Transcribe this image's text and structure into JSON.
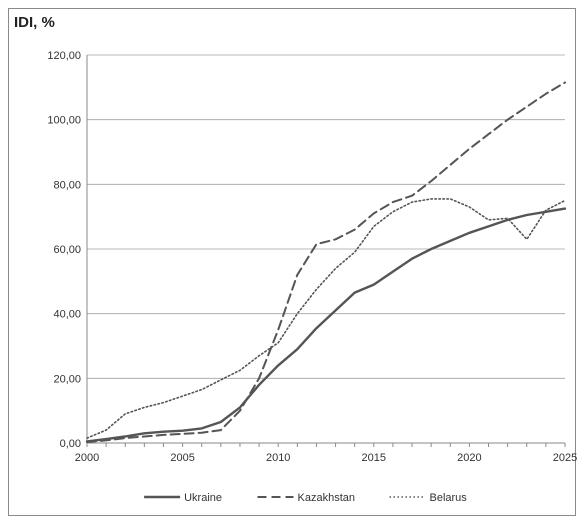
{
  "chart_data": {
    "type": "line",
    "title": "IDI, %",
    "xlabel": "",
    "ylabel": "IDI, %",
    "xlim": [
      2000,
      2025
    ],
    "ylim": [
      0,
      120
    ],
    "x_ticks": [
      "2000",
      "2005",
      "2010",
      "2015",
      "2020",
      "2025"
    ],
    "y_ticks": [
      "0,00",
      "20,00",
      "40,00",
      "60,00",
      "80,00",
      "100,00",
      "120,00"
    ],
    "grid": "horizontal",
    "legend_position": "bottom",
    "x": [
      2000,
      2001,
      2002,
      2003,
      2004,
      2005,
      2006,
      2007,
      2008,
      2009,
      2010,
      2011,
      2012,
      2013,
      2014,
      2015,
      2016,
      2017,
      2018,
      2019,
      2020,
      2021,
      2022,
      2023,
      2024,
      2025
    ],
    "series": [
      {
        "name": "Ukraine",
        "style": "solid",
        "color": "#555555",
        "values": [
          0.5,
          1.2,
          2.0,
          3.0,
          3.5,
          3.8,
          4.5,
          6.5,
          11.0,
          18.0,
          24.0,
          29.0,
          35.5,
          41.0,
          46.5,
          49.0,
          53.0,
          57.0,
          60.0,
          62.5,
          65.0,
          67.0,
          69.0,
          70.5,
          71.5,
          72.5
        ]
      },
      {
        "name": "Kazakhstan",
        "style": "dashed",
        "color": "#555555",
        "values": [
          0.3,
          0.8,
          1.5,
          2.0,
          2.5,
          2.8,
          3.2,
          4.0,
          10.0,
          20.0,
          35.0,
          52.0,
          61.5,
          63.0,
          66.0,
          71.0,
          74.5,
          76.5,
          81.0,
          86.0,
          91.0,
          95.5,
          100.0,
          104.0,
          108.0,
          111.5
        ]
      },
      {
        "name": "Belarus",
        "style": "dotted",
        "color": "#555555",
        "values": [
          1.5,
          4.0,
          9.0,
          11.0,
          12.5,
          14.5,
          16.5,
          19.5,
          22.5,
          27.0,
          31.0,
          40.0,
          47.5,
          54.0,
          59.0,
          67.0,
          71.5,
          74.5,
          75.5,
          75.5,
          73.0,
          69.0,
          69.5,
          63.0,
          72.0,
          75.0
        ]
      }
    ]
  }
}
